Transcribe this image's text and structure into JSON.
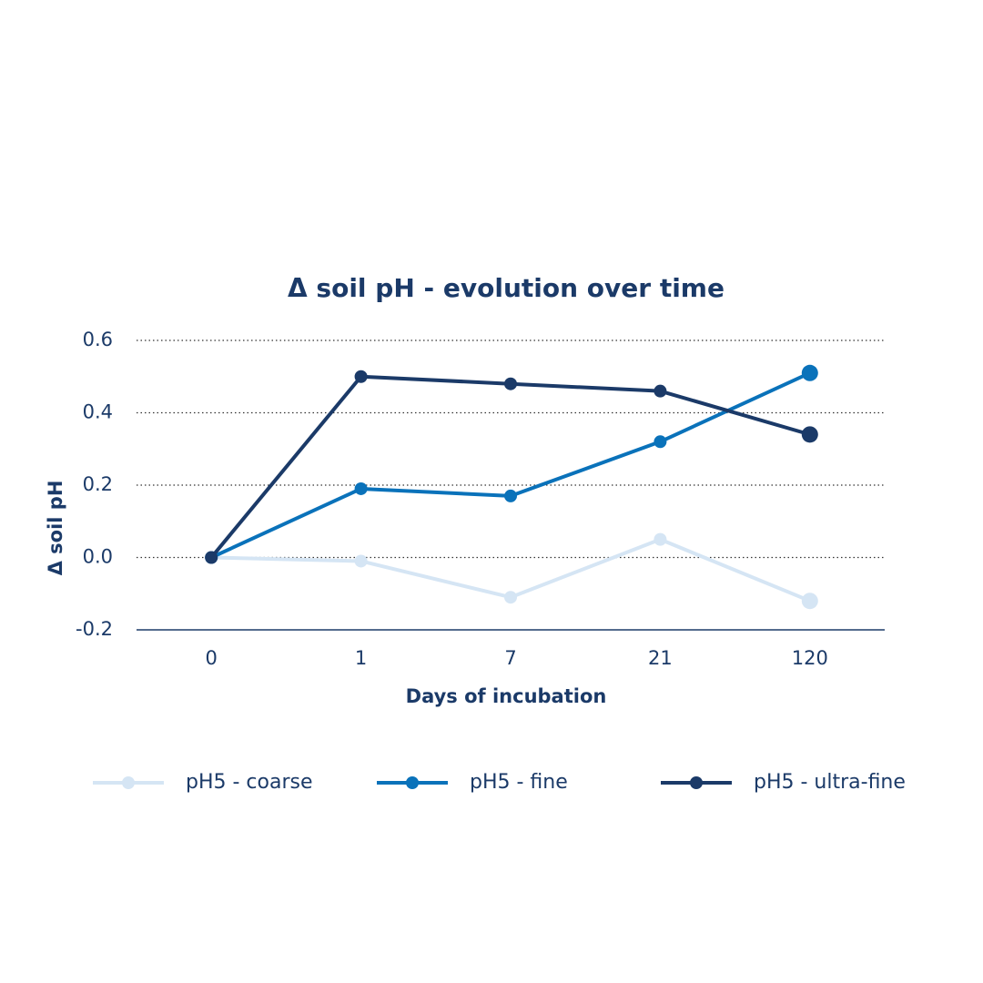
{
  "chart_data": {
    "type": "line",
    "title": "Δ soil pH - evolution over time",
    "x_label": "Days of incubation",
    "y_label": "Δ soil pH",
    "categories": [
      "0",
      "1",
      "7",
      "21",
      "120"
    ],
    "series": [
      {
        "name": "pH5 - coarse",
        "color": "#d5e5f4",
        "values": [
          0.0,
          -0.01,
          -0.11,
          0.05,
          -0.12
        ]
      },
      {
        "name": "pH5 - fine",
        "color": "#0a72ba",
        "values": [
          0.0,
          0.19,
          0.17,
          0.32,
          0.51
        ]
      },
      {
        "name": "pH5 - ultra-fine",
        "color": "#1b3a68",
        "values": [
          0.0,
          0.5,
          0.48,
          0.46,
          0.34
        ]
      }
    ],
    "ylim": [
      -0.2,
      0.6
    ],
    "yticks": [
      -0.2,
      {
        "value": 0,
        "label": "0.0"
      },
      0.2,
      0.4,
      0.6
    ],
    "grid": true
  }
}
